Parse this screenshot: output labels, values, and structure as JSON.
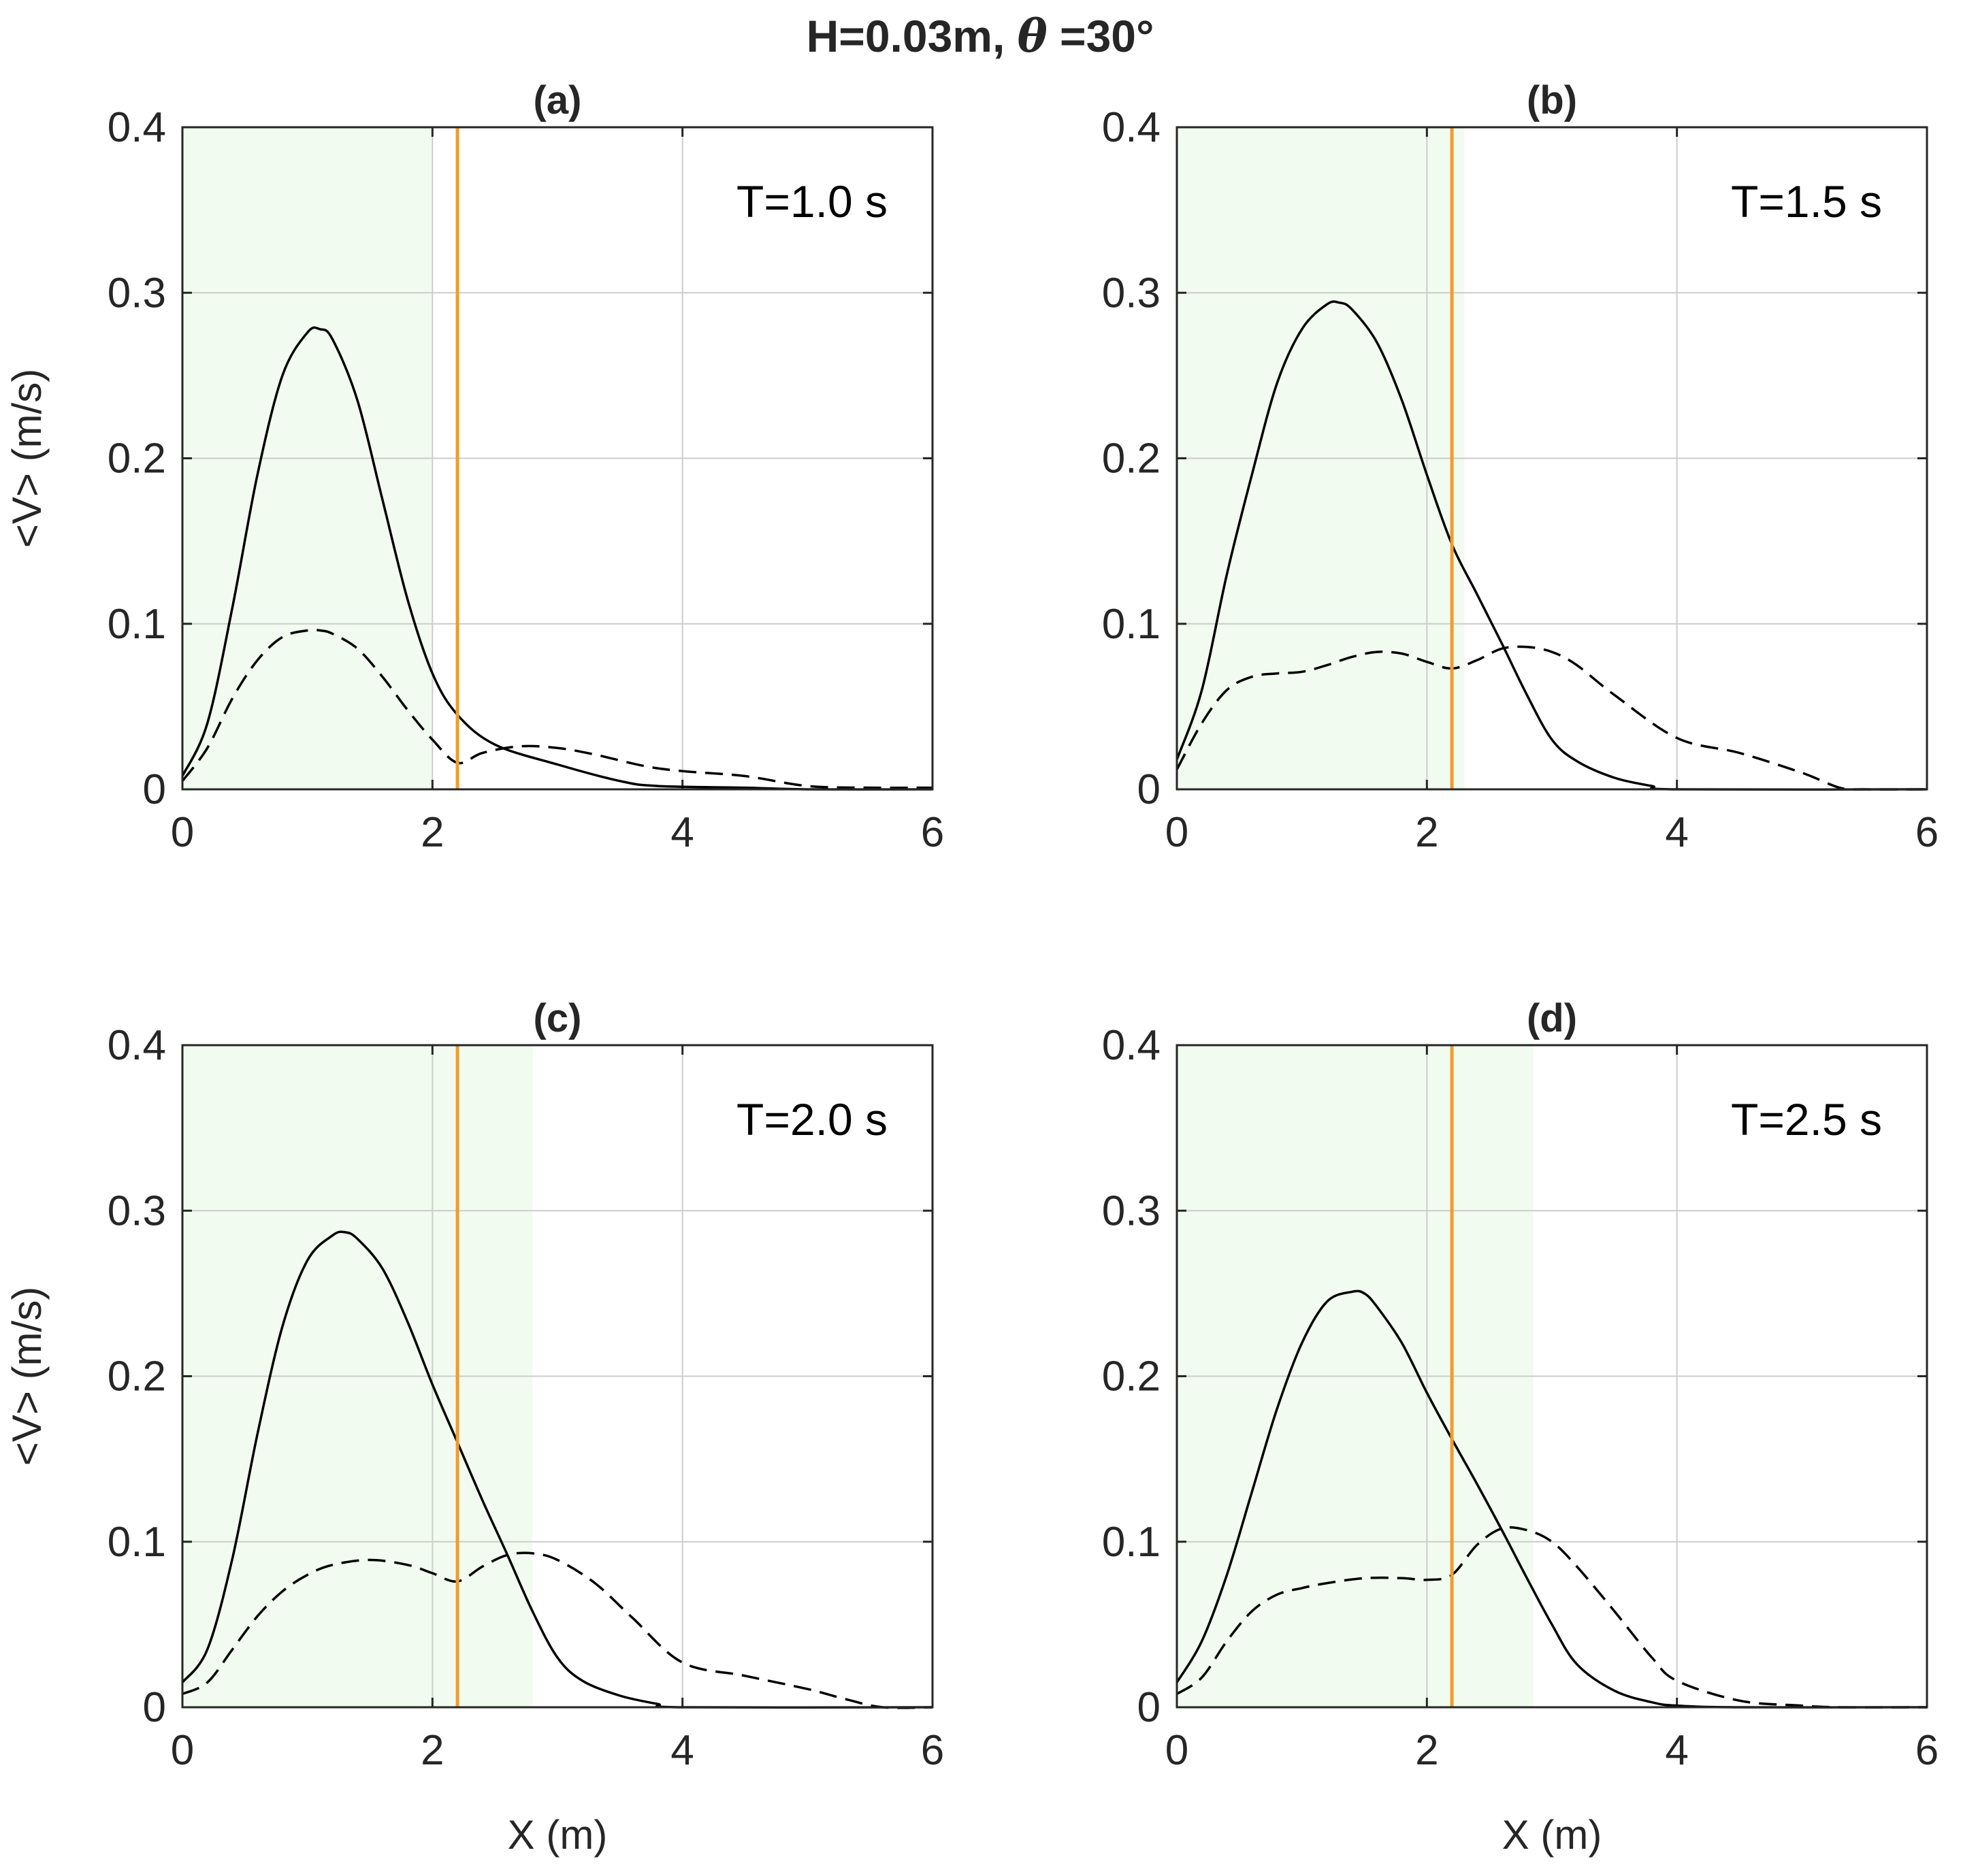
{
  "figure": {
    "suptitle_left": "H=0.03m, ",
    "suptitle_theta": "θ",
    "suptitle_right": " =30°"
  },
  "chart_data": [
    {
      "type": "line",
      "title": "(a)",
      "annotation": "T=1.0 s",
      "xlabel": "",
      "ylabel": "<V> (m/s)",
      "xlim": [
        0,
        6
      ],
      "ylim": [
        0,
        0.4
      ],
      "xticks": [
        "0",
        "2",
        "4",
        "6"
      ],
      "yticks": [
        "0",
        "0.1",
        "0.2",
        "0.3",
        "0.4"
      ],
      "grid": true,
      "shaded_region": [
        0,
        2.0
      ],
      "vertical_line_x": 2.2,
      "series": [
        {
          "style": "solid",
          "color": "#000000",
          "x": [
            0,
            0.2,
            0.4,
            0.6,
            0.8,
            1.0,
            1.1,
            1.2,
            1.4,
            1.6,
            1.8,
            2.0,
            2.2,
            2.5,
            3.0,
            3.5,
            3.8,
            4.5,
            5.0,
            6.0
          ],
          "y": [
            0.008,
            0.04,
            0.11,
            0.19,
            0.25,
            0.276,
            0.278,
            0.272,
            0.235,
            0.175,
            0.115,
            0.07,
            0.045,
            0.027,
            0.015,
            0.005,
            0.002,
            0.001,
            0,
            0
          ]
        },
        {
          "style": "dashed",
          "color": "#000000",
          "x": [
            0,
            0.2,
            0.4,
            0.6,
            0.8,
            1.0,
            1.1,
            1.2,
            1.4,
            1.6,
            1.8,
            2.0,
            2.2,
            2.4,
            2.7,
            3.0,
            3.3,
            3.7,
            4.0,
            4.5,
            5.0,
            5.5,
            6.0
          ],
          "y": [
            0.005,
            0.025,
            0.055,
            0.078,
            0.092,
            0.096,
            0.096,
            0.094,
            0.085,
            0.068,
            0.048,
            0.03,
            0.016,
            0.022,
            0.026,
            0.025,
            0.021,
            0.014,
            0.011,
            0.008,
            0.002,
            0.001,
            0.001
          ]
        }
      ]
    },
    {
      "type": "line",
      "title": "(b)",
      "annotation": "T=1.5 s",
      "xlabel": "",
      "ylabel": "",
      "xlim": [
        0,
        6
      ],
      "ylim": [
        0,
        0.4
      ],
      "xticks": [
        "0",
        "2",
        "4",
        "6"
      ],
      "yticks": [
        "0",
        "0.1",
        "0.2",
        "0.3",
        "0.4"
      ],
      "grid": true,
      "shaded_region": [
        0,
        2.3
      ],
      "vertical_line_x": 2.2,
      "series": [
        {
          "style": "solid",
          "color": "#000000",
          "x": [
            0,
            0.2,
            0.4,
            0.6,
            0.8,
            1.0,
            1.2,
            1.3,
            1.4,
            1.6,
            1.8,
            2.0,
            2.2,
            2.4,
            2.6,
            2.8,
            3.0,
            3.2,
            3.5,
            3.8,
            4.0,
            6.0
          ],
          "y": [
            0.018,
            0.06,
            0.13,
            0.19,
            0.245,
            0.278,
            0.293,
            0.294,
            0.29,
            0.27,
            0.235,
            0.19,
            0.148,
            0.118,
            0.088,
            0.057,
            0.03,
            0.017,
            0.007,
            0.002,
            0,
            0
          ]
        },
        {
          "style": "dashed",
          "color": "#000000",
          "x": [
            0,
            0.2,
            0.4,
            0.6,
            0.8,
            1.0,
            1.2,
            1.4,
            1.6,
            1.8,
            2.0,
            2.2,
            2.4,
            2.6,
            2.8,
            3.0,
            3.2,
            3.5,
            4.0,
            4.5,
            5.0,
            5.3,
            5.5,
            6.0
          ],
          "y": [
            0.012,
            0.04,
            0.06,
            0.068,
            0.07,
            0.071,
            0.075,
            0.08,
            0.083,
            0.082,
            0.077,
            0.073,
            0.078,
            0.085,
            0.086,
            0.083,
            0.075,
            0.057,
            0.031,
            0.022,
            0.01,
            0.001,
            0,
            0
          ]
        }
      ]
    },
    {
      "type": "line",
      "title": "(c)",
      "annotation": "T=2.0 s",
      "xlabel": "X (m)",
      "ylabel": "<V> (m/s)",
      "xlim": [
        0,
        6
      ],
      "ylim": [
        0,
        0.4
      ],
      "xticks": [
        "0",
        "2",
        "4",
        "6"
      ],
      "yticks": [
        "0",
        "0.1",
        "0.2",
        "0.3",
        "0.4"
      ],
      "grid": true,
      "shaded_region": [
        0,
        2.8
      ],
      "vertical_line_x": 2.2,
      "series": [
        {
          "style": "solid",
          "color": "#000000",
          "x": [
            0,
            0.2,
            0.4,
            0.6,
            0.8,
            1.0,
            1.2,
            1.3,
            1.4,
            1.6,
            1.8,
            2.0,
            2.2,
            2.4,
            2.6,
            2.8,
            3.0,
            3.2,
            3.5,
            3.8,
            4.0,
            6.0
          ],
          "y": [
            0.015,
            0.035,
            0.09,
            0.165,
            0.23,
            0.27,
            0.285,
            0.287,
            0.283,
            0.265,
            0.233,
            0.195,
            0.16,
            0.125,
            0.092,
            0.058,
            0.03,
            0.016,
            0.007,
            0.002,
            0,
            0
          ]
        },
        {
          "style": "dashed",
          "color": "#000000",
          "x": [
            0,
            0.2,
            0.4,
            0.6,
            0.8,
            1.0,
            1.2,
            1.5,
            1.8,
            2.0,
            2.2,
            2.4,
            2.6,
            2.8,
            3.0,
            3.3,
            3.6,
            4.0,
            4.5,
            5.0,
            5.3,
            5.6,
            6.0
          ],
          "y": [
            0.008,
            0.015,
            0.035,
            0.055,
            0.07,
            0.08,
            0.086,
            0.089,
            0.086,
            0.081,
            0.076,
            0.085,
            0.092,
            0.093,
            0.089,
            0.075,
            0.054,
            0.027,
            0.019,
            0.011,
            0.005,
            0,
            0
          ]
        }
      ]
    },
    {
      "type": "line",
      "title": "(d)",
      "annotation": "T=2.5 s",
      "xlabel": "X (m)",
      "ylabel": "",
      "xlim": [
        0,
        6
      ],
      "ylim": [
        0,
        0.4
      ],
      "xticks": [
        "0",
        "2",
        "4",
        "6"
      ],
      "yticks": [
        "0",
        "0.1",
        "0.2",
        "0.3",
        "0.4"
      ],
      "grid": true,
      "shaded_region": [
        0,
        2.85
      ],
      "vertical_line_x": 2.2,
      "series": [
        {
          "style": "solid",
          "color": "#000000",
          "x": [
            0,
            0.2,
            0.4,
            0.6,
            0.8,
            1.0,
            1.2,
            1.4,
            1.5,
            1.6,
            1.8,
            2.0,
            2.2,
            2.4,
            2.6,
            2.8,
            3.0,
            3.2,
            3.5,
            3.8,
            4.0,
            4.5,
            6.0
          ],
          "y": [
            0.015,
            0.04,
            0.08,
            0.13,
            0.18,
            0.22,
            0.245,
            0.251,
            0.25,
            0.242,
            0.22,
            0.19,
            0.162,
            0.135,
            0.107,
            0.078,
            0.05,
            0.026,
            0.01,
            0.003,
            0.001,
            0,
            0
          ]
        },
        {
          "style": "dashed",
          "color": "#000000",
          "x": [
            0,
            0.2,
            0.4,
            0.6,
            0.8,
            1.0,
            1.2,
            1.5,
            1.8,
            2.0,
            2.2,
            2.4,
            2.6,
            2.8,
            3.0,
            3.2,
            3.5,
            3.8,
            4.0,
            4.5,
            5.0,
            5.3,
            6.0
          ],
          "y": [
            0.008,
            0.018,
            0.04,
            0.058,
            0.068,
            0.072,
            0.075,
            0.078,
            0.078,
            0.077,
            0.08,
            0.098,
            0.108,
            0.107,
            0.1,
            0.085,
            0.058,
            0.03,
            0.016,
            0.004,
            0.001,
            0,
            0
          ]
        }
      ]
    }
  ]
}
